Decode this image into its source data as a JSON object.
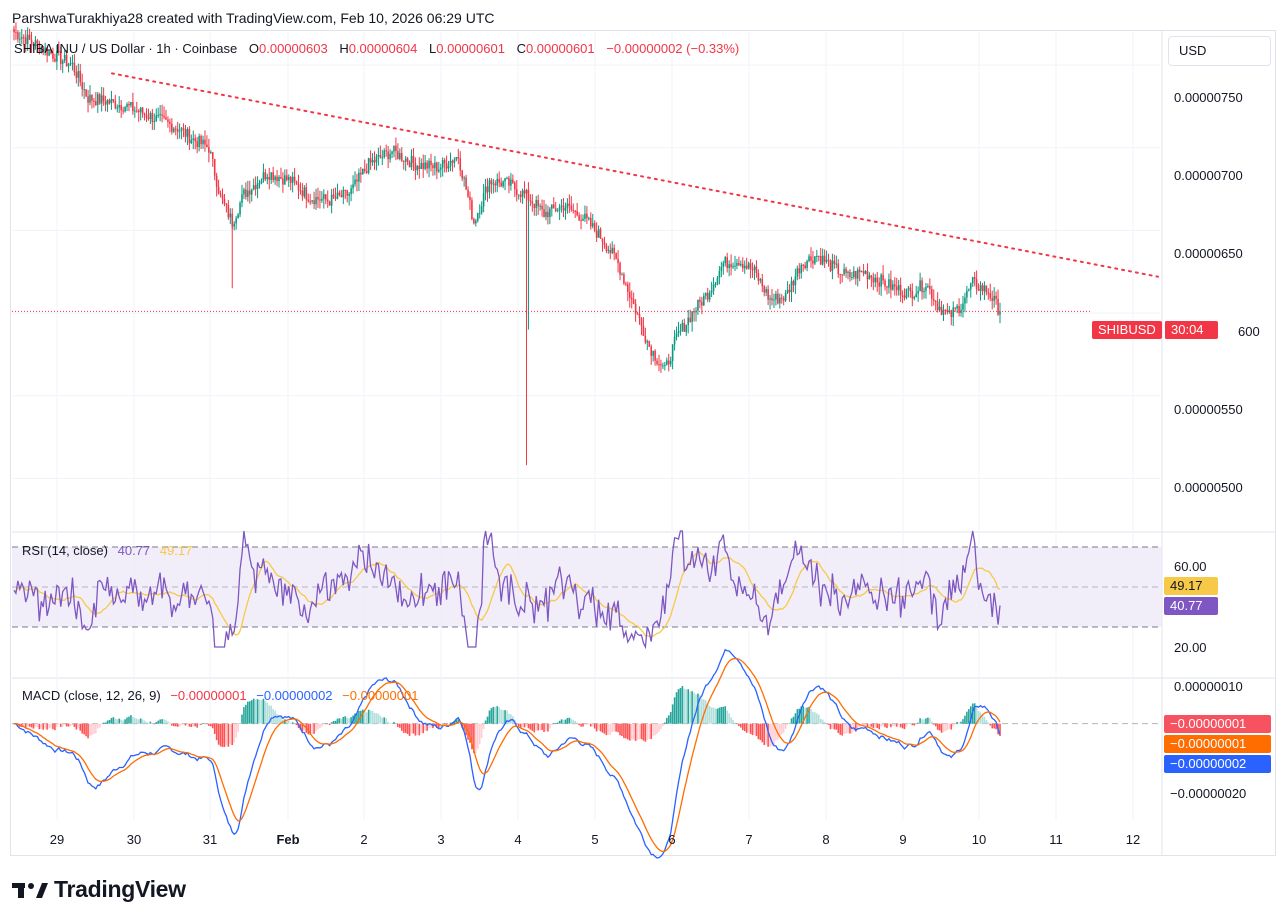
{
  "credit": "ParshwaTurakhiya28 created with TradingView.com, Feb 10, 2026 06:29 UTC",
  "legend": {
    "symbol": "SHIBA INU / US Dollar · 1h · Coinbase",
    "o_label": "O",
    "o_value": "0.00000603",
    "h_label": "H",
    "h_value": "0.00000604",
    "l_label": "L",
    "l_value": "0.00000601",
    "c_label": "C",
    "c_value": "0.00000601",
    "change": "−0.00000002 (−0.33%)"
  },
  "currency": "USD",
  "price_axis": [
    "0.00000750",
    "0.00000700",
    "0.00000650",
    "0.00000550",
    "0.00000500"
  ],
  "price_tag": {
    "symbol": "SHIBUSD",
    "countdown": "30:04",
    "axis_value": "600"
  },
  "rsi": {
    "title": "RSI (14, close)",
    "value": "40.77",
    "ma_value": "49.17",
    "axis": [
      "60.00",
      "20.00"
    ],
    "tag_ma": "49.17",
    "tag_rsi": "40.77"
  },
  "macd": {
    "title": "MACD (close, 12, 26, 9)",
    "hist_value": "−0.00000001",
    "macd_value": "−0.00000002",
    "signal_value": "−0.00000001",
    "axis_top": "0.00000010",
    "axis_bottom": "−0.00000020",
    "tag_hist": "−0.00000001",
    "tag_signal": "−0.00000001",
    "tag_macd": "−0.00000002"
  },
  "dates": [
    "29",
    "30",
    "31",
    "Feb",
    "2",
    "3",
    "4",
    "5",
    "6",
    "7",
    "8",
    "9",
    "10",
    "11",
    "12"
  ],
  "brand": "TradingView",
  "colors": {
    "up": "#089981",
    "down": "#f23645",
    "rsi": "#7e57c2",
    "rsi_ma": "#f7c948",
    "macd": "#2962ff",
    "signal": "#ff6d00",
    "trend": "#f23645"
  },
  "chart_data": {
    "type": "candlestick",
    "title": "SHIBA INU / US Dollar · 1h · Coinbase",
    "y_range": [
      4.7e-06,
      7.7e-06
    ],
    "y_ticks": [
      7.5e-06,
      7e-06,
      6.5e-06,
      6e-06,
      5.5e-06,
      5e-06
    ],
    "close_anchors": [
      [
        0,
        7.7e-06
      ],
      [
        12,
        7.62e-06
      ],
      [
        22,
        7.55e-06
      ],
      [
        30,
        7.5e-06
      ],
      [
        38,
        7.3e-06
      ],
      [
        48,
        7.28e-06
      ],
      [
        58,
        7.25e-06
      ],
      [
        72,
        7.18e-06
      ],
      [
        84,
        7.12e-06
      ],
      [
        92,
        7.05e-06
      ],
      [
        100,
        7e-06
      ],
      [
        106,
        6.7e-06
      ],
      [
        112,
        6.55e-06
      ],
      [
        118,
        6.72e-06
      ],
      [
        130,
        6.85e-06
      ],
      [
        142,
        6.8e-06
      ],
      [
        152,
        6.7e-06
      ],
      [
        162,
        6.68e-06
      ],
      [
        172,
        6.72e-06
      ],
      [
        182,
        6.9e-06
      ],
      [
        194,
        6.98e-06
      ],
      [
        206,
        6.9e-06
      ],
      [
        218,
        6.88e-06
      ],
      [
        228,
        6.95e-06
      ],
      [
        236,
        6.55e-06
      ],
      [
        244,
        6.8e-06
      ],
      [
        254,
        6.78e-06
      ],
      [
        264,
        6.7e-06
      ],
      [
        272,
        6.6e-06
      ],
      [
        282,
        6.65e-06
      ],
      [
        292,
        6.58e-06
      ],
      [
        302,
        6.45e-06
      ],
      [
        310,
        6.3e-06
      ],
      [
        318,
        6.05e-06
      ],
      [
        326,
        5.8e-06
      ],
      [
        334,
        5.65e-06
      ],
      [
        340,
        5.85e-06
      ],
      [
        348,
        6e-06
      ],
      [
        356,
        6.12e-06
      ],
      [
        364,
        6.3e-06
      ],
      [
        372,
        6.32e-06
      ],
      [
        380,
        6.25e-06
      ],
      [
        388,
        6.08e-06
      ],
      [
        396,
        6.1e-06
      ],
      [
        404,
        6.3e-06
      ],
      [
        412,
        6.35e-06
      ],
      [
        420,
        6.28e-06
      ],
      [
        428,
        6.22e-06
      ],
      [
        436,
        6.25e-06
      ],
      [
        444,
        6.2e-06
      ],
      [
        452,
        6.15e-06
      ],
      [
        460,
        6.12e-06
      ],
      [
        468,
        6.18e-06
      ],
      [
        474,
        6.05e-06
      ],
      [
        480,
        5.98e-06
      ],
      [
        486,
        6.05e-06
      ],
      [
        492,
        6.18e-06
      ],
      [
        500,
        6.13e-06
      ],
      [
        506,
        6.01e-06
      ]
    ],
    "wicks": [
      [
        112,
        6.15e-06
      ],
      [
        263,
        5.08e-06
      ],
      [
        264,
        5.9e-06
      ]
    ],
    "trendline": [
      [
        7.45e-06
      ],
      [
        6.22e-06
      ]
    ],
    "last_close": 6.01e-06,
    "rsi_range": [
      0,
      100
    ],
    "rsi_bands": [
      70,
      50,
      30
    ],
    "macd_range": [
      -2.3e-07,
      1.2e-07
    ]
  }
}
